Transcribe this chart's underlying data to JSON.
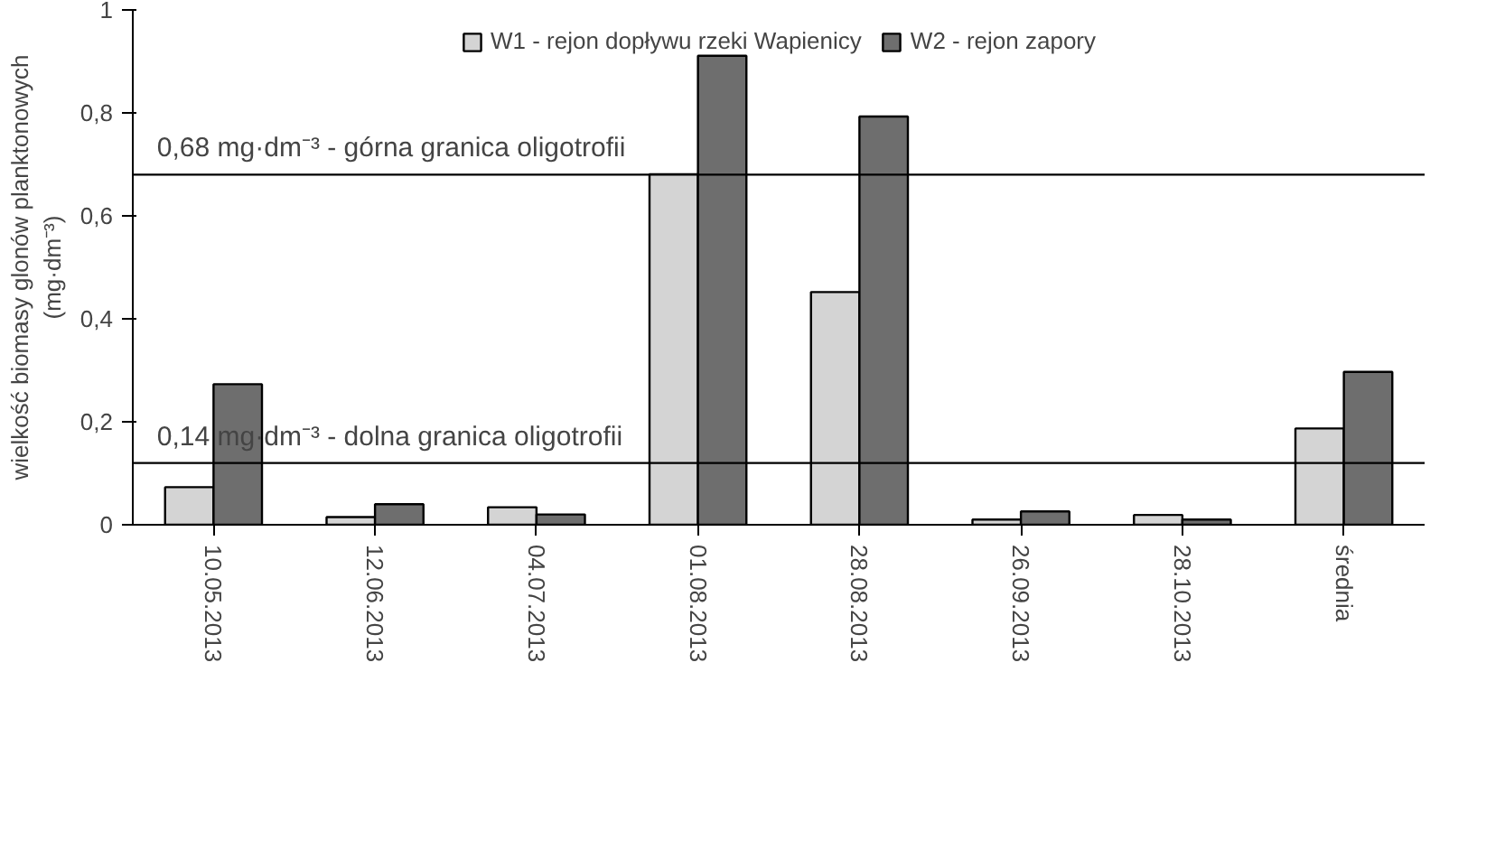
{
  "chart_data": {
    "type": "bar",
    "categories": [
      "10.05.2013",
      "12.06.2013",
      "04.07.2013",
      "01.08.2013",
      "28.08.2013",
      "26.09.2013",
      "28.10.2013",
      "średnia"
    ],
    "series": [
      {
        "name": "W1 - rejon dopływu rzeki Wapienicy",
        "color": "#d4d4d4",
        "values": [
          0.073,
          0.015,
          0.034,
          0.681,
          0.452,
          0.01,
          0.019,
          0.187
        ]
      },
      {
        "name": "W2 - rejon zapory",
        "color": "#6e6e6e",
        "values": [
          0.273,
          0.04,
          0.02,
          0.911,
          0.793,
          0.026,
          0.01,
          0.297
        ]
      }
    ],
    "ylabel": "wielkość biomasy glonów planktonowych\n(mg·dm⁻³)",
    "ylim": [
      0,
      1
    ],
    "yticks": [
      0,
      {
        "value": 0.2,
        "label": "0,2"
      },
      {
        "value": 0.4,
        "label": "0,4"
      },
      {
        "value": 0.6,
        "label": "0,6"
      },
      {
        "value": 0.8,
        "label": "0,8"
      },
      1
    ],
    "ref_lines": [
      {
        "axis": "y",
        "value": 0.68,
        "label": "0,68 mg·dm⁻³ - górna granica oligotrofii",
        "color": "#000000"
      },
      {
        "axis": "y",
        "value": 0.12,
        "label": "0,14 mg·dm⁻³ - dolna granica oligotrofii",
        "color": "#000000"
      }
    ],
    "legend": "top",
    "grid": false
  }
}
